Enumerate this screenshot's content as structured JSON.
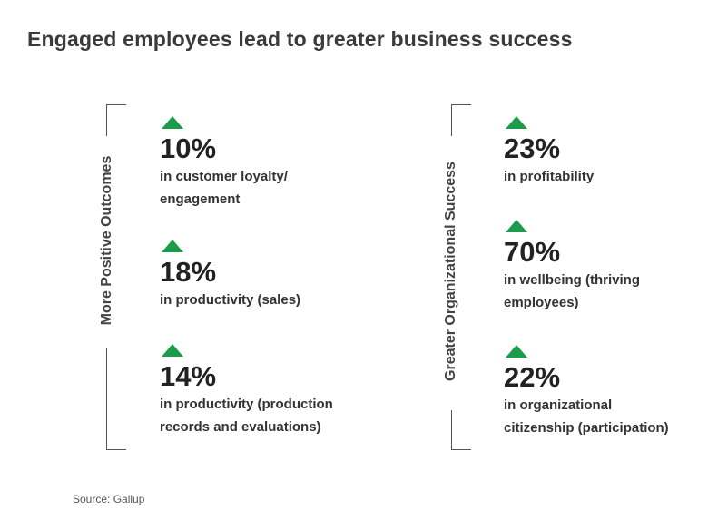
{
  "title": "Engaged employees lead to greater business success",
  "left": {
    "label": "More Positive Outcomes",
    "items": [
      {
        "value": "10%",
        "desc1": "in customer loyalty/",
        "desc2": "engagement"
      },
      {
        "value": "18%",
        "desc1": "in productivity (sales)",
        "desc2": ""
      },
      {
        "value": "14%",
        "desc1": "in productivity (production",
        "desc2": "records and evaluations)"
      }
    ]
  },
  "right": {
    "label": "Greater Organizational Success",
    "items": [
      {
        "value": "23%",
        "desc1": "in profitability",
        "desc2": ""
      },
      {
        "value": "70%",
        "desc1": "in wellbeing (thriving",
        "desc2": "employees)"
      },
      {
        "value": "22%",
        "desc1": "in organizational",
        "desc2": "citizenship (participation)"
      }
    ]
  },
  "source": "Source: Gallup",
  "colors": {
    "arrow": "#1a9c4b",
    "text": "#222222"
  },
  "icons": {
    "increase": "triangle-up-icon"
  }
}
